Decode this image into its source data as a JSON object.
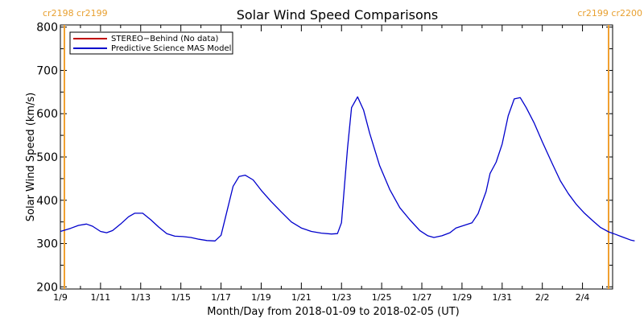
{
  "chart_data": {
    "type": "line",
    "title": "Solar Wind Speed Comparisons",
    "xlabel": "Month/Day from 2018-01-09 to 2018-02-05 (UT)",
    "ylabel": "Solar Wind Speed (km/s)",
    "x_start": "2018-01-09",
    "x_end": "2018-02-05",
    "xlim_days": [
      0,
      27.5
    ],
    "ylim": [
      195,
      805
    ],
    "x_ticks": [
      "1/9",
      "1/11",
      "1/13",
      "1/15",
      "1/17",
      "1/19",
      "1/21",
      "1/23",
      "1/25",
      "1/27",
      "1/29",
      "1/31",
      "2/2",
      "2/4"
    ],
    "x_tick_days": [
      0,
      2,
      4,
      6,
      8,
      10,
      12,
      14,
      16,
      18,
      20,
      22,
      24,
      26
    ],
    "y_ticks": [
      200,
      300,
      400,
      500,
      600,
      700,
      800
    ],
    "carrington_markers": [
      {
        "label": "cr2198 cr2199",
        "day": 0.2,
        "side": "left"
      },
      {
        "label": "cr2199 cr2200",
        "day": 27.3,
        "side": "right"
      }
    ],
    "marker_color": "#f0a030",
    "legend": [
      {
        "label": "STEREO−Behind (No data)",
        "color": "#c00000"
      },
      {
        "label": "Predictive Science MAS Model",
        "color": "#0000cc"
      }
    ],
    "series": [
      {
        "name": "Predictive Science MAS Model",
        "color": "#0000cc",
        "points": [
          [
            0.0,
            328
          ],
          [
            0.5,
            335
          ],
          [
            0.9,
            342
          ],
          [
            1.3,
            345
          ],
          [
            1.6,
            340
          ],
          [
            2.0,
            328
          ],
          [
            2.3,
            325
          ],
          [
            2.6,
            330
          ],
          [
            3.0,
            345
          ],
          [
            3.4,
            362
          ],
          [
            3.7,
            370
          ],
          [
            4.1,
            370
          ],
          [
            4.5,
            355
          ],
          [
            4.9,
            338
          ],
          [
            5.3,
            323
          ],
          [
            5.7,
            317
          ],
          [
            6.1,
            316
          ],
          [
            6.5,
            314
          ],
          [
            6.9,
            310
          ],
          [
            7.3,
            307
          ],
          [
            7.7,
            306
          ],
          [
            8.0,
            319
          ],
          [
            8.3,
            375
          ],
          [
            8.6,
            432
          ],
          [
            8.9,
            455
          ],
          [
            9.2,
            458
          ],
          [
            9.6,
            447
          ],
          [
            10.0,
            423
          ],
          [
            10.5,
            397
          ],
          [
            11.0,
            373
          ],
          [
            11.5,
            350
          ],
          [
            12.0,
            336
          ],
          [
            12.5,
            328
          ],
          [
            13.0,
            324
          ],
          [
            13.5,
            322
          ],
          [
            13.8,
            323
          ],
          [
            14.0,
            348
          ],
          [
            14.3,
            520
          ],
          [
            14.5,
            614
          ],
          [
            14.8,
            639
          ],
          [
            15.1,
            608
          ],
          [
            15.4,
            555
          ],
          [
            15.9,
            480
          ],
          [
            16.4,
            425
          ],
          [
            16.9,
            383
          ],
          [
            17.4,
            355
          ],
          [
            17.9,
            330
          ],
          [
            18.3,
            318
          ],
          [
            18.6,
            314
          ],
          [
            19.0,
            318
          ],
          [
            19.4,
            325
          ],
          [
            19.7,
            336
          ],
          [
            20.1,
            342
          ],
          [
            20.5,
            348
          ],
          [
            20.8,
            369
          ],
          [
            21.2,
            420
          ],
          [
            21.4,
            462
          ],
          [
            21.7,
            488
          ],
          [
            22.0,
            530
          ],
          [
            22.3,
            595
          ],
          [
            22.6,
            634
          ],
          [
            22.9,
            637
          ],
          [
            23.2,
            614
          ],
          [
            23.6,
            578
          ],
          [
            24.0,
            535
          ],
          [
            24.5,
            484
          ],
          [
            24.9,
            445
          ],
          [
            25.3,
            415
          ],
          [
            25.7,
            390
          ],
          [
            26.1,
            370
          ],
          [
            26.5,
            353
          ],
          [
            26.9,
            337
          ],
          [
            27.3,
            327
          ],
          [
            27.6,
            322
          ],
          [
            28.0,
            315
          ],
          [
            28.4,
            308
          ],
          [
            28.6,
            306
          ]
        ]
      }
    ],
    "grid": false,
    "legend_position": "top-left"
  }
}
